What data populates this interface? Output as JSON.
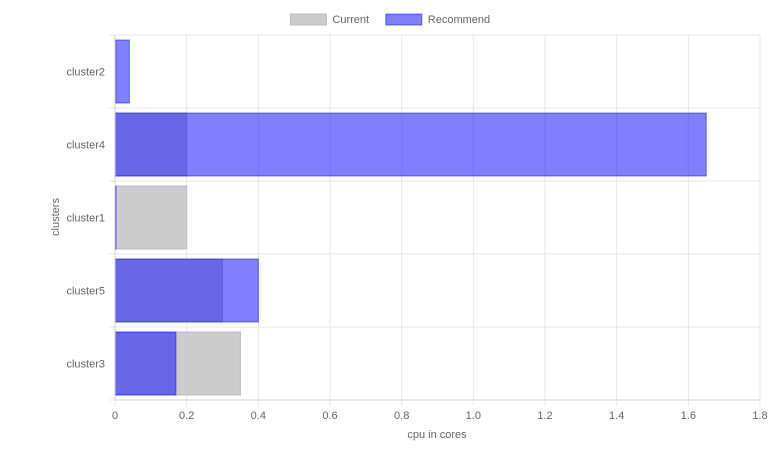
{
  "chart_data": {
    "type": "bar",
    "orientation": "horizontal",
    "categories": [
      "cluster2",
      "cluster4",
      "cluster1",
      "cluster5",
      "cluster3"
    ],
    "series": [
      {
        "name": "Current",
        "values": [
          0.003,
          0.2,
          0.2,
          0.3,
          0.35
        ],
        "fill": "#cccccc",
        "stroke": "#bdbdbd"
      },
      {
        "name": "Recommend",
        "values": [
          0.04,
          1.65,
          0.003,
          0.4,
          0.17
        ],
        "fill": "#0000ff",
        "stroke": "#0000ff",
        "opacity": 0.5
      }
    ],
    "xlabel": "cpu in cores",
    "ylabel": "clusters",
    "xlim": [
      0,
      1.8
    ],
    "xticks": [
      "0",
      "0.2",
      "0.4",
      "0.6",
      "0.8",
      "1.0",
      "1.2",
      "1.4",
      "1.6",
      "1.8"
    ],
    "grid": true,
    "legend": "top"
  }
}
